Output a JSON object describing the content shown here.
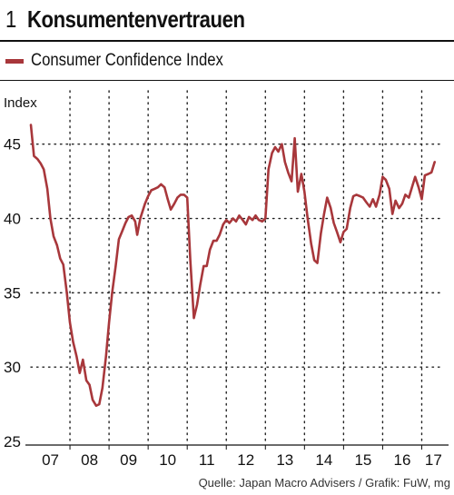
{
  "figure": {
    "number": "1",
    "title": "Konsumentenvertrauen",
    "source": "Quelle: Japan Macro Advisers / Grafik: FuW, mg"
  },
  "chart_data": {
    "type": "line",
    "ylabel": "Index",
    "ylim": [
      25,
      47
    ],
    "yticks": [
      25,
      30,
      35,
      40,
      45
    ],
    "xlim": [
      2007.0,
      2017.5
    ],
    "xticks": [
      {
        "label": "07",
        "pos": 2007.5
      },
      {
        "label": "08",
        "pos": 2008.5
      },
      {
        "label": "09",
        "pos": 2009.5
      },
      {
        "label": "10",
        "pos": 2010.5
      },
      {
        "label": "11",
        "pos": 2011.5
      },
      {
        "label": "12",
        "pos": 2012.5
      },
      {
        "label": "13",
        "pos": 2013.5
      },
      {
        "label": "14",
        "pos": 2014.5
      },
      {
        "label": "15",
        "pos": 2015.5
      },
      {
        "label": "16",
        "pos": 2016.5
      },
      {
        "label": "17",
        "pos": 2017.3
      }
    ],
    "grid": true,
    "legend": "top-left",
    "series": [
      {
        "name": "Consumer Confidence Index",
        "color": "#a8373b",
        "points": [
          [
            2007.0,
            46.3
          ],
          [
            2007.08,
            44.2
          ],
          [
            2007.17,
            44.0
          ],
          [
            2007.25,
            43.7
          ],
          [
            2007.33,
            43.3
          ],
          [
            2007.42,
            42.0
          ],
          [
            2007.5,
            40.0
          ],
          [
            2007.58,
            38.8
          ],
          [
            2007.67,
            38.2
          ],
          [
            2007.75,
            37.3
          ],
          [
            2007.83,
            36.9
          ],
          [
            2007.92,
            35.0
          ],
          [
            2008.0,
            33.0
          ],
          [
            2008.08,
            31.7
          ],
          [
            2008.17,
            30.7
          ],
          [
            2008.25,
            29.6
          ],
          [
            2008.33,
            30.5
          ],
          [
            2008.42,
            29.1
          ],
          [
            2008.5,
            28.8
          ],
          [
            2008.58,
            27.8
          ],
          [
            2008.67,
            27.4
          ],
          [
            2008.75,
            27.5
          ],
          [
            2008.83,
            28.6
          ],
          [
            2008.92,
            30.7
          ],
          [
            2009.0,
            33.0
          ],
          [
            2009.08,
            35.0
          ],
          [
            2009.17,
            36.8
          ],
          [
            2009.25,
            38.6
          ],
          [
            2009.33,
            39.1
          ],
          [
            2009.42,
            39.7
          ],
          [
            2009.5,
            40.1
          ],
          [
            2009.58,
            40.2
          ],
          [
            2009.67,
            39.8
          ],
          [
            2009.72,
            38.9
          ],
          [
            2009.8,
            40.0
          ],
          [
            2009.92,
            41.0
          ],
          [
            2010.0,
            41.5
          ],
          [
            2010.08,
            41.9
          ],
          [
            2010.17,
            42.0
          ],
          [
            2010.25,
            42.1
          ],
          [
            2010.33,
            42.3
          ],
          [
            2010.42,
            42.1
          ],
          [
            2010.5,
            41.3
          ],
          [
            2010.58,
            40.6
          ],
          [
            2010.67,
            41.0
          ],
          [
            2010.75,
            41.4
          ],
          [
            2010.83,
            41.6
          ],
          [
            2010.92,
            41.6
          ],
          [
            2011.0,
            41.4
          ],
          [
            2011.08,
            37.2
          ],
          [
            2011.17,
            33.3
          ],
          [
            2011.25,
            34.2
          ],
          [
            2011.33,
            35.5
          ],
          [
            2011.42,
            36.8
          ],
          [
            2011.5,
            36.8
          ],
          [
            2011.58,
            37.9
          ],
          [
            2011.67,
            38.5
          ],
          [
            2011.75,
            38.5
          ],
          [
            2011.83,
            38.9
          ],
          [
            2011.92,
            39.6
          ],
          [
            2012.0,
            39.9
          ],
          [
            2012.08,
            39.7
          ],
          [
            2012.17,
            40.0
          ],
          [
            2012.25,
            39.8
          ],
          [
            2012.33,
            40.2
          ],
          [
            2012.42,
            39.9
          ],
          [
            2012.5,
            39.6
          ],
          [
            2012.58,
            40.1
          ],
          [
            2012.67,
            39.9
          ],
          [
            2012.75,
            40.2
          ],
          [
            2012.83,
            39.9
          ],
          [
            2012.92,
            39.8
          ],
          [
            2013.0,
            40.0
          ],
          [
            2013.08,
            43.3
          ],
          [
            2013.17,
            44.4
          ],
          [
            2013.25,
            44.8
          ],
          [
            2013.33,
            44.5
          ],
          [
            2013.42,
            45.0
          ],
          [
            2013.5,
            43.8
          ],
          [
            2013.58,
            43.1
          ],
          [
            2013.67,
            42.5
          ],
          [
            2013.75,
            45.4
          ],
          [
            2013.83,
            41.8
          ],
          [
            2013.92,
            43.0
          ],
          [
            2014.0,
            41.8
          ],
          [
            2014.08,
            40.0
          ],
          [
            2014.17,
            38.3
          ],
          [
            2014.25,
            37.2
          ],
          [
            2014.33,
            37.0
          ],
          [
            2014.42,
            39.0
          ],
          [
            2014.5,
            40.3
          ],
          [
            2014.58,
            41.4
          ],
          [
            2014.67,
            40.7
          ],
          [
            2014.75,
            39.7
          ],
          [
            2014.83,
            39.1
          ],
          [
            2014.92,
            38.4
          ],
          [
            2015.0,
            39.1
          ],
          [
            2015.08,
            39.3
          ],
          [
            2015.17,
            40.7
          ],
          [
            2015.25,
            41.5
          ],
          [
            2015.33,
            41.6
          ],
          [
            2015.42,
            41.5
          ],
          [
            2015.5,
            41.4
          ],
          [
            2015.58,
            41.1
          ],
          [
            2015.67,
            40.8
          ],
          [
            2015.75,
            41.3
          ],
          [
            2015.83,
            40.8
          ],
          [
            2015.92,
            41.6
          ],
          [
            2016.0,
            42.8
          ],
          [
            2016.08,
            42.6
          ],
          [
            2016.17,
            42.0
          ],
          [
            2016.25,
            40.3
          ],
          [
            2016.33,
            41.2
          ],
          [
            2016.42,
            40.7
          ],
          [
            2016.5,
            41.0
          ],
          [
            2016.58,
            41.6
          ],
          [
            2016.67,
            41.4
          ],
          [
            2016.75,
            42.1
          ],
          [
            2016.83,
            42.8
          ],
          [
            2016.92,
            42.1
          ],
          [
            2017.0,
            41.3
          ],
          [
            2017.08,
            42.9
          ],
          [
            2017.17,
            43.0
          ],
          [
            2017.25,
            43.1
          ],
          [
            2017.33,
            43.8
          ]
        ]
      }
    ]
  }
}
